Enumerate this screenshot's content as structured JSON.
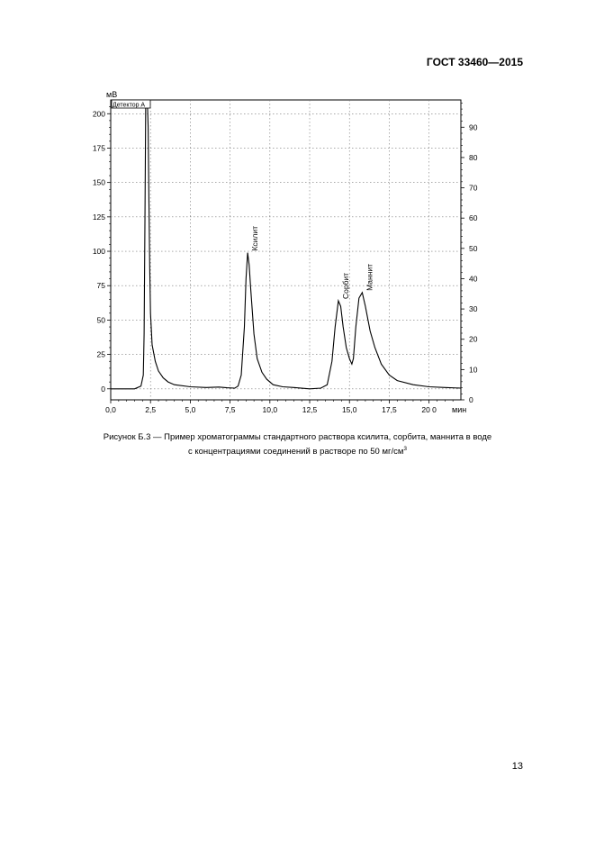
{
  "document": {
    "standard": "ГОСТ 33460—2015",
    "page_number": "13",
    "caption_line1": "Рисунок Б.3 — Пример хроматограммы стандартного раствора ксилита, сорбита, маннита в воде",
    "caption_line2": "с концентрациями соединений в растворе по 50 мг/см",
    "caption_superscript": "3"
  },
  "chart_data": {
    "type": "line",
    "ylabel": "мВ",
    "xlabel": "мин",
    "legend_label": "Детектор А",
    "xlim": [
      0,
      22
    ],
    "ylim": [
      -8,
      210
    ],
    "y2lim": [
      0,
      99
    ],
    "x_ticks": [
      0,
      2.5,
      5,
      7.5,
      10,
      12.5,
      15,
      17.5,
      20
    ],
    "x_tick_labels": [
      "0,0",
      "2,5",
      "5,0",
      "7,5",
      "10,0",
      "12,5",
      "15,0",
      "17,5",
      "20 0"
    ],
    "y_ticks": [
      0,
      25,
      50,
      75,
      100,
      125,
      150,
      175,
      200
    ],
    "y_tick_labels": [
      "0",
      "25",
      "50",
      "75",
      "100",
      "125",
      "150",
      "175",
      "200"
    ],
    "y2_ticks": [
      0,
      10,
      20,
      30,
      40,
      50,
      60,
      70,
      80,
      90
    ],
    "y2_tick_labels": [
      "0",
      "10",
      "20",
      "30",
      "40",
      "50",
      "60",
      "70",
      "80",
      "90"
    ],
    "grid": true,
    "peaks": [
      {
        "label": "Ксилит",
        "x": 8.6,
        "y": 99
      },
      {
        "label": "Сорбит",
        "x": 14.3,
        "y": 64
      },
      {
        "label": "Маннит",
        "x": 15.8,
        "y": 70
      }
    ],
    "series": [
      {
        "x": [
          0,
          1.5,
          1.9,
          2.05,
          2.1,
          2.15,
          2.2,
          2.3,
          2.35,
          2.4,
          2.45,
          2.5,
          2.6,
          2.8,
          3.0,
          3.3,
          3.6,
          4.0,
          5.0,
          6.0,
          6.8,
          7.3,
          7.8,
          8.0,
          8.2,
          8.4,
          8.5,
          8.6,
          8.7,
          8.8,
          9.0,
          9.2,
          9.5,
          9.8,
          10.2,
          10.8,
          11.5,
          12.5,
          13.2,
          13.6,
          13.9,
          14.1,
          14.3,
          14.45,
          14.6,
          14.8,
          15.0,
          15.15,
          15.25,
          15.4,
          15.6,
          15.8,
          16.0,
          16.3,
          16.6,
          17.0,
          17.5,
          18.0,
          19.0,
          20.0,
          21.0,
          22.0
        ],
        "y": [
          0,
          0,
          2,
          10,
          40,
          120,
          210,
          210,
          190,
          140,
          90,
          55,
          32,
          20,
          13,
          8,
          5,
          3,
          1.5,
          1,
          1.3,
          0.8,
          0.5,
          2,
          10,
          45,
          80,
          99,
          90,
          72,
          40,
          22,
          12,
          7,
          3,
          1.5,
          1,
          0,
          0.5,
          3,
          20,
          45,
          64,
          60,
          45,
          30,
          22,
          18,
          22,
          45,
          66,
          70,
          60,
          42,
          30,
          18,
          10,
          6,
          3,
          1.5,
          1,
          0.5
        ]
      }
    ]
  }
}
